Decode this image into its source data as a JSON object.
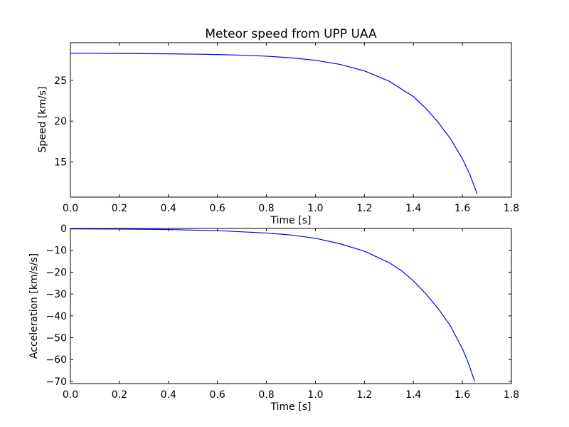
{
  "chart_data": [
    {
      "type": "line",
      "title": "Meteor speed from  UPP UAA",
      "xlabel": "Time [s]",
      "ylabel": "Speed [km/s]",
      "xlim": [
        0.0,
        1.8
      ],
      "ylim": [
        10.7,
        29.6
      ],
      "xticks": [
        "0.0",
        "0.2",
        "0.4",
        "0.6",
        "0.8",
        "1.0",
        "1.2",
        "1.4",
        "1.6",
        "1.8"
      ],
      "yticks": [
        "15",
        "20",
        "25"
      ],
      "grid": false,
      "color": "#0000ff",
      "series": [
        {
          "x": [
            0.0,
            0.1,
            0.2,
            0.3,
            0.4,
            0.5,
            0.6,
            0.7,
            0.8,
            0.9,
            1.0,
            1.1,
            1.2,
            1.3,
            1.4,
            1.45,
            1.5,
            1.55,
            1.6,
            1.63,
            1.66
          ],
          "y": [
            28.3,
            28.3,
            28.28,
            28.26,
            28.24,
            28.2,
            28.15,
            28.07,
            27.95,
            27.75,
            27.45,
            26.95,
            26.15,
            24.9,
            23.0,
            21.6,
            19.9,
            17.9,
            15.4,
            13.5,
            11.1
          ]
        }
      ]
    },
    {
      "type": "line",
      "title": "",
      "xlabel": "Time [s]",
      "ylabel": "Acceleration [km/s/s]",
      "xlim": [
        0.0,
        1.8
      ],
      "ylim": [
        -71,
        0
      ],
      "xticks": [
        "0.0",
        "0.2",
        "0.4",
        "0.6",
        "0.8",
        "1.0",
        "1.2",
        "1.4",
        "1.6",
        "1.8"
      ],
      "yticks": [
        "0",
        "−10",
        "−20",
        "−30",
        "−40",
        "−50",
        "−60",
        "−70"
      ],
      "grid": false,
      "color": "#0000ff",
      "series": [
        {
          "x": [
            0.0,
            0.2,
            0.4,
            0.6,
            0.8,
            0.9,
            1.0,
            1.1,
            1.2,
            1.3,
            1.35,
            1.4,
            1.45,
            1.5,
            1.55,
            1.6,
            1.625,
            1.65
          ],
          "y": [
            -0.2,
            -0.3,
            -0.5,
            -1.0,
            -2.1,
            -3.0,
            -4.5,
            -7.0,
            -10.4,
            -15.6,
            -19.2,
            -24.0,
            -29.8,
            -36.5,
            -44.4,
            -55.0,
            -61.8,
            -70.0
          ]
        }
      ]
    }
  ]
}
